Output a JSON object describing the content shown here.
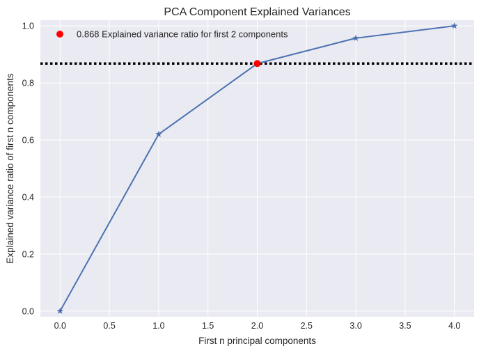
{
  "chart_data": {
    "type": "line",
    "title": "PCA Component Explained Variances",
    "xlabel": "First n principal components",
    "ylabel": "Explained variance ratio of first n components",
    "xlim": [
      -0.2,
      4.2
    ],
    "ylim": [
      -0.02,
      1.02
    ],
    "x_ticks": [
      0.0,
      0.5,
      1.0,
      1.5,
      2.0,
      2.5,
      3.0,
      3.5,
      4.0
    ],
    "x_tick_labels": [
      "0.0",
      "0.5",
      "1.0",
      "1.5",
      "2.0",
      "2.5",
      "3.0",
      "3.5",
      "4.0"
    ],
    "y_ticks": [
      0.0,
      0.2,
      0.4,
      0.6,
      0.8,
      1.0
    ],
    "y_tick_labels": [
      "0.0",
      "0.2",
      "0.4",
      "0.6",
      "0.8",
      "1.0"
    ],
    "grid": true,
    "series": [
      {
        "x": [
          0,
          1,
          2,
          3,
          4
        ],
        "values": [
          0.0,
          0.62,
          0.868,
          0.957,
          1.0
        ],
        "marker": "star",
        "color": "#4c72b0"
      }
    ],
    "highlight_point": {
      "x": 2,
      "y": 0.868,
      "color": "#ff0000"
    },
    "reference_line": {
      "y": 0.868,
      "style": "dotted",
      "color": "#000000"
    },
    "legend": {
      "placement": "top-left",
      "entries": [
        {
          "label": "0.868 Explained variance ratio for first 2 components",
          "marker": "circle",
          "color": "#ff0000"
        }
      ]
    },
    "background": "#eaeaf2",
    "grid_color": "#ffffff"
  }
}
